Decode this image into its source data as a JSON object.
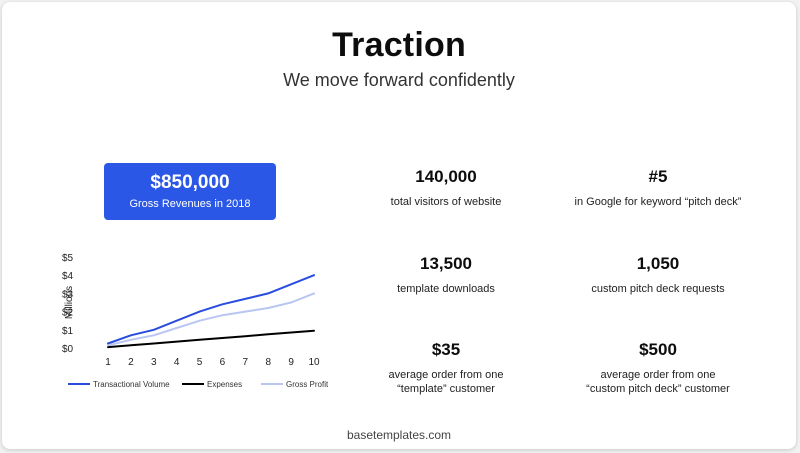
{
  "header": {
    "title": "Traction",
    "subtitle": "We move forward confidently"
  },
  "revenue_card": {
    "value": "$850,000",
    "label": "Gross Revenues in 2018"
  },
  "stats": [
    {
      "value": "140,000",
      "label_lines": [
        "total visitors of website"
      ]
    },
    {
      "value": "#5",
      "label_lines": [
        "in Google for keyword “pitch deck”"
      ]
    },
    {
      "value": "13,500",
      "label_lines": [
        "template downloads"
      ]
    },
    {
      "value": "1,050",
      "label_lines": [
        "custom pitch deck requests"
      ]
    },
    {
      "value": "$35",
      "label_lines": [
        "average order from one",
        "“template” customer"
      ]
    },
    {
      "value": "$500",
      "label_lines": [
        "average order from one",
        "“custom pitch deck” customer"
      ]
    }
  ],
  "footer": {
    "text": "basetemplates.com"
  },
  "chart_data": {
    "type": "line",
    "title": "",
    "xlabel": "",
    "ylabel": "Millions",
    "x": [
      1,
      2,
      3,
      4,
      5,
      6,
      7,
      8,
      9,
      10
    ],
    "ylim": [
      0,
      5
    ],
    "yticks": [
      "$0",
      "$1",
      "$2",
      "$3",
      "$4",
      "$5"
    ],
    "grid": false,
    "legend": "bottom",
    "series": [
      {
        "name": "Transactional Volume",
        "color": "#2a4de0",
        "values": [
          0.25,
          0.7,
          1.0,
          1.5,
          2.0,
          2.4,
          2.7,
          3.0,
          3.5,
          4.0
        ]
      },
      {
        "name": "Expenses",
        "color": "#000000",
        "values": [
          0.05,
          0.15,
          0.25,
          0.35,
          0.45,
          0.55,
          0.65,
          0.75,
          0.85,
          0.95
        ]
      },
      {
        "name": "Gross Profit",
        "color": "#b9c6f2",
        "values": [
          0.15,
          0.45,
          0.7,
          1.1,
          1.5,
          1.8,
          2.0,
          2.2,
          2.5,
          3.0
        ]
      }
    ]
  }
}
